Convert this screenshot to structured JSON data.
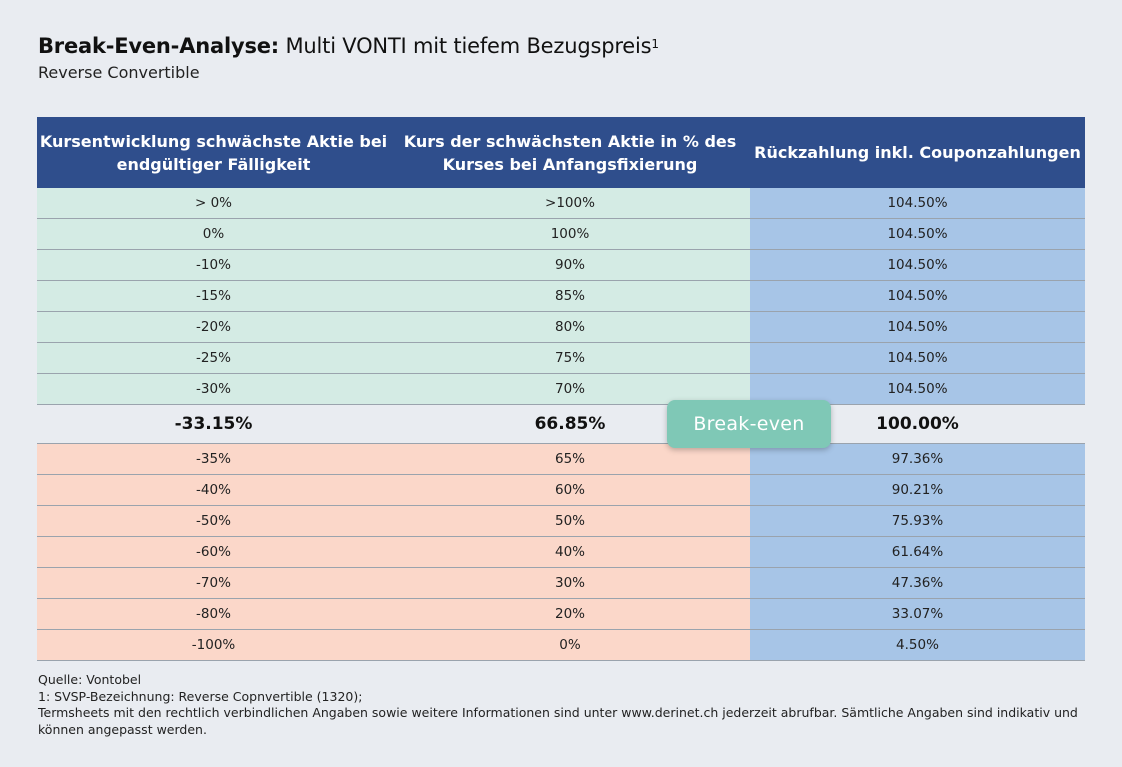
{
  "header": {
    "title_bold": "Break-Even-Analyse:",
    "title_rest": " Multi VONTI mit tiefem Bezugspreis",
    "title_footnote_mark": "1",
    "subtitle": "Reverse Convertible"
  },
  "table": {
    "columns": [
      "Kursentwicklung schwächste Aktie bei endgültiger Fälligkeit",
      "Kurs der schwächsten Aktie in % des Kurses bei Anfangsfixierung",
      "Rückzahlung inkl. Couponzahlungen"
    ],
    "rows_above": [
      [
        "> 0%",
        ">100%",
        "104.50%"
      ],
      [
        "0%",
        "100%",
        "104.50%"
      ],
      [
        "-10%",
        "90%",
        "104.50%"
      ],
      [
        "-15%",
        "85%",
        "104.50%"
      ],
      [
        "-20%",
        "80%",
        "104.50%"
      ],
      [
        "-25%",
        "75%",
        "104.50%"
      ],
      [
        "-30%",
        "70%",
        "104.50%"
      ]
    ],
    "break_even_row": [
      "-33.15%",
      "66.85%",
      "100.00%"
    ],
    "rows_below": [
      [
        "-35%",
        "65%",
        "97.36%"
      ],
      [
        "-40%",
        "60%",
        "90.21%"
      ],
      [
        "-50%",
        "50%",
        "75.93%"
      ],
      [
        "-60%",
        "40%",
        "61.64%"
      ],
      [
        "-70%",
        "30%",
        "47.36%"
      ],
      [
        "-80%",
        "20%",
        "33.07%"
      ],
      [
        "-100%",
        "0%",
        "4.50%"
      ]
    ]
  },
  "badge": {
    "label": "Break-even"
  },
  "colors": {
    "header_bg": "#2f4e8c",
    "above_bg": "#d4ebe4",
    "below_bg": "#fbd7c9",
    "payout_bg": "#a7c5e7",
    "badge_bg": "#7fc8b6"
  },
  "footer": {
    "source": "Quelle: Vontobel",
    "note1": "1:  SVSP-Bezeichnung: Reverse Copnvertible (1320);",
    "disclaimer": "Termsheets mit den rechtlich verbindlichen Angaben sowie weitere Informationen sind unter www.derinet.ch jederzeit abrufbar. Sämtliche Angaben sind indikativ und können angepasst werden."
  }
}
